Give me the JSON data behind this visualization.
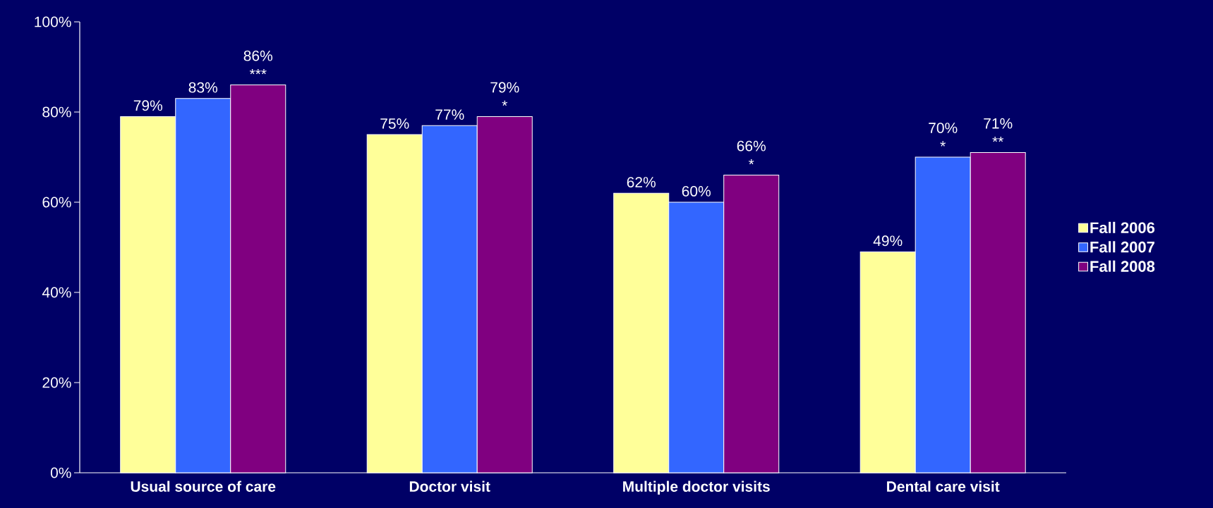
{
  "chart_data": {
    "type": "bar",
    "categories": [
      "Usual source of care",
      "Doctor visit",
      "Multiple doctor visits",
      "Dental care visit"
    ],
    "series": [
      {
        "name": "Fall 2006",
        "color": "#ffff99",
        "values": [
          79,
          75,
          62,
          49
        ],
        "value_labels": [
          "79%",
          "75%",
          "62%",
          "49%"
        ]
      },
      {
        "name": "Fall 2007",
        "color": "#3366ff",
        "values": [
          83,
          77,
          60,
          70
        ],
        "value_labels": [
          "83%",
          "77%",
          "60%",
          "70% *"
        ]
      },
      {
        "name": "Fall 2008",
        "color": "#800080",
        "values": [
          86,
          79,
          66,
          71
        ],
        "value_labels": [
          "86% ***",
          "79% *",
          "66% *",
          "71% **"
        ]
      }
    ],
    "ylim": [
      0,
      100
    ],
    "yticks": [
      {
        "value": 0,
        "label": "0%"
      },
      {
        "value": 20,
        "label": "20%"
      },
      {
        "value": 40,
        "label": "40%"
      },
      {
        "value": 60,
        "label": "60%"
      },
      {
        "value": 80,
        "label": "80%"
      },
      {
        "value": 100,
        "label": "100%"
      }
    ],
    "grid": false,
    "legend": "right"
  }
}
